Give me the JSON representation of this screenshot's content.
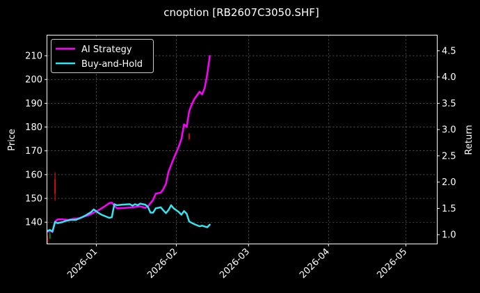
{
  "chart_data": {
    "type": "line",
    "title": "cnoption [RB2607C3050.SHF]",
    "ylabel_left": "Price",
    "ylabel_right": "Return",
    "grid": true,
    "legend_position": "top-left",
    "x_range": [
      "2025-12-13",
      "2026-05-13"
    ],
    "y_left_range": [
      131,
      218.5
    ],
    "y_right_range": [
      0.83,
      4.79
    ],
    "x_ticks": [
      {
        "date": "2026-01-01",
        "label": "2026-01"
      },
      {
        "date": "2026-02-01",
        "label": "2026-02"
      },
      {
        "date": "2026-03-01",
        "label": "2026-03"
      },
      {
        "date": "2026-04-01",
        "label": "2026-04"
      },
      {
        "date": "2026-05-01",
        "label": "2026-05"
      }
    ],
    "y_left_ticks": [
      140,
      150,
      160,
      170,
      180,
      190,
      200,
      210
    ],
    "y_right_ticks": [
      1.0,
      1.5,
      2.0,
      2.5,
      3.0,
      3.5,
      4.0,
      4.5
    ],
    "series": [
      {
        "name": "AI Strategy",
        "axis": "right",
        "color": "#ff00ff",
        "points": [
          [
            "2025-12-13",
            1.05
          ],
          [
            "2025-12-14",
            1.08
          ],
          [
            "2025-12-15",
            1.05
          ],
          [
            "2025-12-16",
            1.25
          ],
          [
            "2025-12-17",
            1.29
          ],
          [
            "2025-12-19",
            1.29
          ],
          [
            "2025-12-21",
            1.28
          ],
          [
            "2025-12-23",
            1.3
          ],
          [
            "2025-12-25",
            1.31
          ],
          [
            "2025-12-27",
            1.34
          ],
          [
            "2025-12-29",
            1.37
          ],
          [
            "2025-12-31",
            1.42
          ],
          [
            "2026-01-02",
            1.47
          ],
          [
            "2026-01-04",
            1.53
          ],
          [
            "2026-01-06",
            1.6
          ],
          [
            "2026-01-07",
            1.61
          ],
          [
            "2026-01-08",
            1.55
          ],
          [
            "2026-01-09",
            1.5
          ],
          [
            "2026-01-12",
            1.51
          ],
          [
            "2026-01-15",
            1.52
          ],
          [
            "2026-01-18",
            1.54
          ],
          [
            "2026-01-20",
            1.51
          ],
          [
            "2026-01-21",
            1.54
          ],
          [
            "2026-01-22",
            1.6
          ],
          [
            "2026-01-23",
            1.66
          ],
          [
            "2026-01-24",
            1.78
          ],
          [
            "2026-01-26",
            1.8
          ],
          [
            "2026-01-27",
            1.87
          ],
          [
            "2026-01-28",
            1.97
          ],
          [
            "2026-01-29",
            2.2
          ],
          [
            "2026-01-31",
            2.45
          ],
          [
            "2026-02-02",
            2.68
          ],
          [
            "2026-02-03",
            2.82
          ],
          [
            "2026-02-04",
            3.1
          ],
          [
            "2026-02-05",
            3.05
          ],
          [
            "2026-02-06",
            3.35
          ],
          [
            "2026-02-07",
            3.48
          ],
          [
            "2026-02-08",
            3.58
          ],
          [
            "2026-02-10",
            3.72
          ],
          [
            "2026-02-11",
            3.67
          ],
          [
            "2026-02-12",
            3.79
          ],
          [
            "2026-02-13",
            4.05
          ],
          [
            "2026-02-14",
            4.4
          ]
        ]
      },
      {
        "name": "Buy-and-Hold",
        "axis": "right",
        "color": "#33e6f2",
        "points": [
          [
            "2025-12-13",
            1.07
          ],
          [
            "2025-12-14",
            1.09
          ],
          [
            "2025-12-15",
            1.06
          ],
          [
            "2025-12-16",
            1.24
          ],
          [
            "2025-12-17",
            1.22
          ],
          [
            "2025-12-19",
            1.24
          ],
          [
            "2025-12-20",
            1.26
          ],
          [
            "2025-12-22",
            1.28
          ],
          [
            "2025-12-24",
            1.28
          ],
          [
            "2025-12-26",
            1.32
          ],
          [
            "2025-12-28",
            1.37
          ],
          [
            "2025-12-30",
            1.43
          ],
          [
            "2025-12-31",
            1.48
          ],
          [
            "2026-01-01",
            1.44
          ],
          [
            "2026-01-03",
            1.38
          ],
          [
            "2026-01-06",
            1.32
          ],
          [
            "2026-01-07",
            1.33
          ],
          [
            "2026-01-08",
            1.58
          ],
          [
            "2026-01-09",
            1.56
          ],
          [
            "2026-01-11",
            1.57
          ],
          [
            "2026-01-14",
            1.58
          ],
          [
            "2026-01-15",
            1.55
          ],
          [
            "2026-01-16",
            1.58
          ],
          [
            "2026-01-17",
            1.56
          ],
          [
            "2026-01-18",
            1.59
          ],
          [
            "2026-01-20",
            1.57
          ],
          [
            "2026-01-21",
            1.53
          ],
          [
            "2026-01-22",
            1.42
          ],
          [
            "2026-01-23",
            1.42
          ],
          [
            "2026-01-24",
            1.5
          ],
          [
            "2026-01-26",
            1.52
          ],
          [
            "2026-01-27",
            1.46
          ],
          [
            "2026-01-28",
            1.41
          ],
          [
            "2026-01-29",
            1.47
          ],
          [
            "2026-01-30",
            1.56
          ],
          [
            "2026-01-31",
            1.5
          ],
          [
            "2026-02-02",
            1.43
          ],
          [
            "2026-02-03",
            1.38
          ],
          [
            "2026-02-04",
            1.45
          ],
          [
            "2026-02-05",
            1.4
          ],
          [
            "2026-02-06",
            1.25
          ],
          [
            "2026-02-08",
            1.2
          ],
          [
            "2026-02-10",
            1.16
          ],
          [
            "2026-02-11",
            1.17
          ],
          [
            "2026-02-13",
            1.14
          ],
          [
            "2026-02-14",
            1.19
          ]
        ]
      }
    ],
    "candles": [
      {
        "date": "2025-12-13",
        "open": 134,
        "close": 131,
        "high": 135,
        "low": 131,
        "color": "#d01010"
      },
      {
        "date": "2025-12-14",
        "open": 135,
        "close": 133,
        "high": 136,
        "low": 133,
        "color": "#108010"
      },
      {
        "date": "2025-12-16",
        "open": 152,
        "close": 158,
        "high": 161,
        "low": 149,
        "color": "#d01010"
      },
      {
        "date": "2026-02-06",
        "open": 175,
        "close": 177,
        "high": 177.5,
        "low": 174.5,
        "color": "#d01010"
      }
    ]
  }
}
